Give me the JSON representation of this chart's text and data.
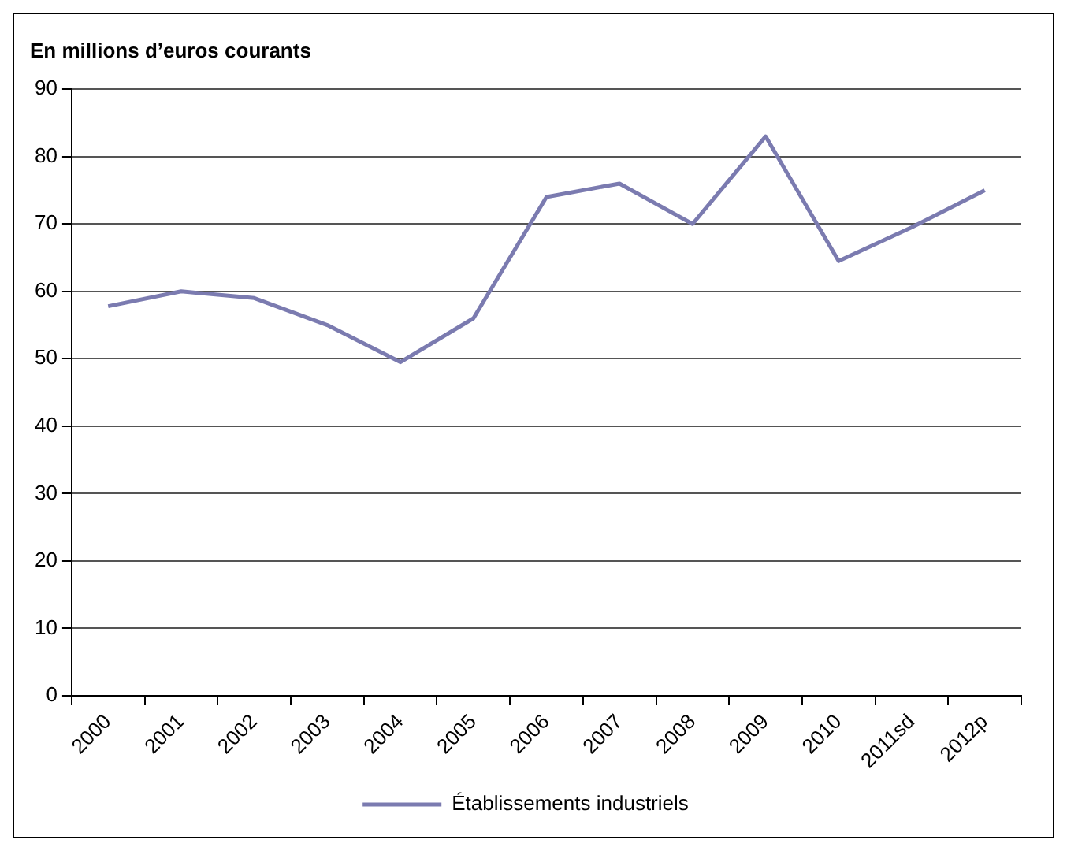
{
  "chart_data": {
    "type": "line",
    "title": "En millions d’euros courants",
    "categories": [
      "2000",
      "2001",
      "2002",
      "2003",
      "2004",
      "2005",
      "2006",
      "2007",
      "2008",
      "2009",
      "2010",
      "2011sd",
      "2012p"
    ],
    "series": [
      {
        "name": "Établissements industriels",
        "color": "#7b7bb0",
        "values": [
          57.8,
          60,
          59,
          55,
          49.5,
          56,
          74,
          76,
          70,
          83,
          64.5,
          69.5,
          75
        ]
      }
    ],
    "ylim": [
      0,
      90
    ],
    "yticks": [
      0,
      10,
      20,
      30,
      40,
      50,
      60,
      70,
      80,
      90
    ],
    "grid": "y",
    "legend": "bottom",
    "marker": "none"
  }
}
